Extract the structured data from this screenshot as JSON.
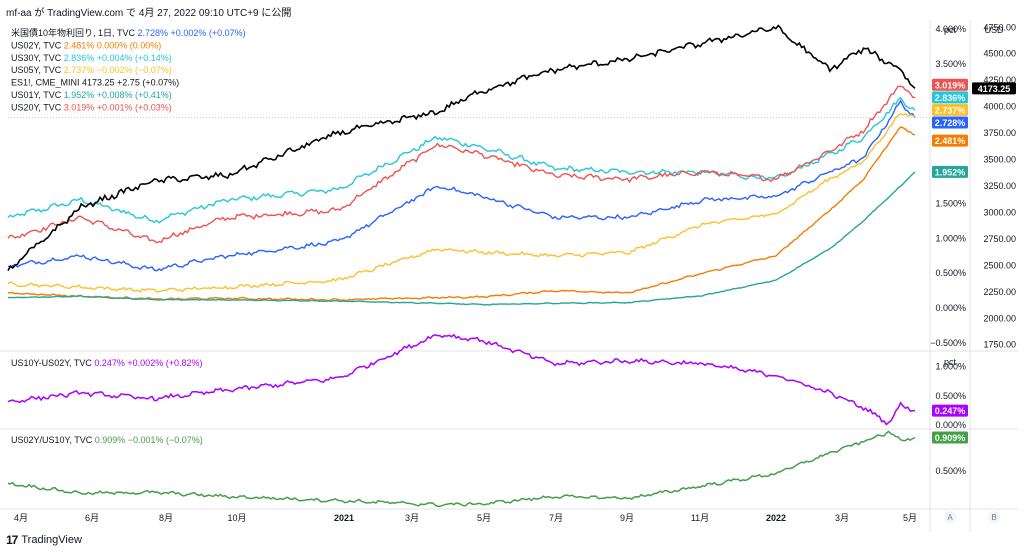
{
  "header": {
    "publisher_line": "mf-aa が TradingView.com で 4月 27, 2022 09:10 UTC+9 に公開"
  },
  "footer": {
    "logo_glyph": "17",
    "brand": "TradingView"
  },
  "bottom_buttons": {
    "auto": "A",
    "log": "B"
  },
  "chart_data": [
    {
      "type": "line",
      "panel": "main",
      "left_axis_unit": "pct",
      "right_axis_unit": "USD",
      "left_ticks": [
        "−0.500%",
        "0.000%",
        "0.500%",
        "1.000%",
        "1.500%",
        "3.500%",
        "4.000%"
      ],
      "right_ticks": [
        "1750.00",
        "2000.00",
        "2250.00",
        "2500.00",
        "2750.00",
        "3000.00",
        "3250.00",
        "3500.00",
        "3750.00",
        "4000.00",
        "4250.00",
        "4500.00",
        "4750.00"
      ],
      "ylim_left": [
        -0.6,
        4.1
      ],
      "ylim_right": [
        1700,
        4800
      ],
      "x_ticks": [
        "4月",
        "6月",
        "8月",
        "10月",
        "2021",
        "3月",
        "5月",
        "7月",
        "9月",
        "11月",
        "2022",
        "3月",
        "5月"
      ],
      "x_range": [
        "2020-04-01",
        "2022-04-27"
      ],
      "legend": [
        {
          "name": "米国債10年物利回り, 1日, TVC",
          "value": "2.728%",
          "change": "+0.002% (+0.07%)",
          "color": "#2962ff"
        },
        {
          "name": "US02Y, TVC",
          "value": "2.481%",
          "change": "0.000% (0.00%)",
          "color": "#f57c00"
        },
        {
          "name": "US30Y, TVC",
          "value": "2.836%",
          "change": "+0.004% (+0.14%)",
          "color": "#26c6da"
        },
        {
          "name": "US05Y, TVC",
          "value": "2.737%",
          "change": "−0.002% (−0.07%)",
          "color": "#fbc02d"
        },
        {
          "name": "ES1!, CME_MINI",
          "value": "4173.25",
          "change": "+2.75 (+0.07%)",
          "color": "#000000"
        },
        {
          "name": "US01Y, TVC",
          "value": "1.952%",
          "change": "+0.008% (+0.41%)",
          "color": "#26a69a"
        },
        {
          "name": "US20Y, TVC",
          "value": "3.019%",
          "change": "+0.001% (+0.03%)",
          "color": "#ef5350"
        }
      ],
      "series": [
        {
          "name": "US30Y",
          "axis": "left",
          "color": "#26c6da",
          "x": [
            "2020-04-01",
            "2020-06-01",
            "2020-08-01",
            "2020-10-01",
            "2021-01-01",
            "2021-03-25",
            "2021-05-01",
            "2021-07-01",
            "2021-09-01",
            "2021-11-01",
            "2022-01-01",
            "2022-02-15",
            "2022-03-15",
            "2022-04-15",
            "2022-04-27"
          ],
          "values": [
            1.3,
            1.55,
            1.25,
            1.55,
            1.7,
            2.45,
            2.3,
            2.0,
            1.95,
            1.95,
            1.85,
            2.2,
            2.45,
            3.0,
            2.836
          ]
        },
        {
          "name": "US20Y",
          "axis": "left",
          "color": "#ef5350",
          "x": [
            "2020-04-01",
            "2020-06-01",
            "2020-08-01",
            "2020-10-01",
            "2021-01-01",
            "2021-03-25",
            "2021-05-01",
            "2021-07-01",
            "2021-09-01",
            "2021-11-01",
            "2022-01-01",
            "2022-02-15",
            "2022-03-15",
            "2022-04-15",
            "2022-04-27"
          ],
          "values": [
            1.0,
            1.3,
            0.95,
            1.3,
            1.4,
            2.35,
            2.2,
            1.9,
            1.85,
            1.95,
            1.85,
            2.25,
            2.55,
            3.2,
            3.019
          ]
        },
        {
          "name": "US10Y",
          "axis": "left",
          "color": "#2962ff",
          "x": [
            "2020-04-01",
            "2020-06-01",
            "2020-08-01",
            "2020-10-01",
            "2021-01-01",
            "2021-03-25",
            "2021-05-01",
            "2021-07-01",
            "2021-09-01",
            "2021-11-01",
            "2022-01-01",
            "2022-02-15",
            "2022-03-15",
            "2022-04-15",
            "2022-04-27"
          ],
          "values": [
            0.6,
            0.75,
            0.55,
            0.75,
            0.95,
            1.75,
            1.6,
            1.3,
            1.3,
            1.55,
            1.6,
            1.95,
            2.15,
            2.95,
            2.728
          ]
        },
        {
          "name": "US05Y",
          "axis": "left",
          "color": "#fbc02d",
          "x": [
            "2020-04-01",
            "2020-06-01",
            "2020-08-01",
            "2020-10-01",
            "2021-01-01",
            "2021-03-25",
            "2021-05-01",
            "2021-07-01",
            "2021-09-01",
            "2021-11-01",
            "2022-01-01",
            "2022-02-15",
            "2022-03-15",
            "2022-04-15",
            "2022-04-27"
          ],
          "values": [
            0.35,
            0.3,
            0.25,
            0.3,
            0.4,
            0.85,
            0.8,
            0.75,
            0.8,
            1.2,
            1.35,
            1.85,
            2.1,
            2.8,
            2.737
          ]
        },
        {
          "name": "US02Y",
          "axis": "left",
          "color": "#f57c00",
          "x": [
            "2020-04-01",
            "2020-06-01",
            "2020-08-01",
            "2020-10-01",
            "2021-01-01",
            "2021-03-25",
            "2021-05-01",
            "2021-07-01",
            "2021-09-01",
            "2021-11-01",
            "2022-01-01",
            "2022-02-15",
            "2022-03-15",
            "2022-04-15",
            "2022-04-27"
          ],
          "values": [
            0.22,
            0.17,
            0.13,
            0.14,
            0.12,
            0.15,
            0.16,
            0.25,
            0.22,
            0.5,
            0.75,
            1.4,
            1.85,
            2.6,
            2.481
          ]
        },
        {
          "name": "US01Y",
          "axis": "left",
          "color": "#26a69a",
          "x": [
            "2020-04-01",
            "2020-06-01",
            "2020-08-01",
            "2020-10-01",
            "2021-01-01",
            "2021-03-25",
            "2021-05-01",
            "2021-07-01",
            "2021-09-01",
            "2021-11-01",
            "2022-01-01",
            "2022-02-15",
            "2022-03-15",
            "2022-04-15",
            "2022-04-27"
          ],
          "values": [
            0.15,
            0.17,
            0.12,
            0.12,
            0.1,
            0.07,
            0.05,
            0.07,
            0.08,
            0.18,
            0.4,
            0.85,
            1.25,
            1.75,
            1.952
          ]
        },
        {
          "name": "ES1!",
          "axis": "right",
          "color": "#000000",
          "x": [
            "2020-04-01",
            "2020-06-01",
            "2020-08-01",
            "2020-10-01",
            "2021-01-01",
            "2021-03-25",
            "2021-05-01",
            "2021-07-01",
            "2021-09-01",
            "2021-11-01",
            "2022-01-01",
            "2022-02-15",
            "2022-03-15",
            "2022-04-15",
            "2022-04-27"
          ],
          "values": [
            2450,
            3050,
            3300,
            3350,
            3750,
            3950,
            4150,
            4350,
            4450,
            4600,
            4750,
            4350,
            4550,
            4350,
            4173.25
          ]
        }
      ],
      "last_value_tags": [
        "3.019%",
        "2.836%",
        "4173.25",
        "2.737%",
        "2.728%",
        "2.481%",
        "1.952%"
      ],
      "crosshair_y_pct": 2.728
    },
    {
      "type": "line",
      "panel": "spread",
      "legend_text": "US10Y-US02Y, TVC",
      "value": "0.247%",
      "change": "+0.002% (+0.82%)",
      "color": "#aa00ff",
      "unit": "pct",
      "ticks": [
        "0.000%",
        "0.500%",
        "1.000%"
      ],
      "ylim": [
        -0.05,
        1.25
      ],
      "x": [
        "2020-04-01",
        "2020-06-01",
        "2020-08-01",
        "2020-10-01",
        "2021-01-01",
        "2021-03-25",
        "2021-05-01",
        "2021-07-01",
        "2021-09-01",
        "2021-11-01",
        "2022-01-01",
        "2022-02-15",
        "2022-03-15",
        "2022-04-05",
        "2022-04-15",
        "2022-04-27"
      ],
      "values": [
        0.4,
        0.55,
        0.45,
        0.6,
        0.8,
        1.55,
        1.45,
        1.05,
        1.1,
        1.05,
        0.85,
        0.55,
        0.3,
        0.03,
        0.35,
        0.247
      ]
    },
    {
      "type": "line",
      "panel": "ratio",
      "legend_text": "US02Y/US10Y, TVC",
      "value": "0.909%",
      "change": "−0.001% (−0.07%)",
      "color": "#43a047",
      "unit": "pct",
      "ticks": [
        "0.500%"
      ],
      "ylim": [
        0.05,
        1.0
      ],
      "x": [
        "2020-04-01",
        "2020-06-01",
        "2020-08-01",
        "2020-10-01",
        "2021-01-01",
        "2021-03-25",
        "2021-05-01",
        "2021-07-01",
        "2021-09-01",
        "2021-11-01",
        "2022-01-01",
        "2022-02-15",
        "2022-03-15",
        "2022-04-05",
        "2022-04-15",
        "2022-04-27"
      ],
      "values": [
        0.35,
        0.23,
        0.24,
        0.19,
        0.14,
        0.09,
        0.1,
        0.19,
        0.17,
        0.32,
        0.47,
        0.72,
        0.86,
        0.97,
        0.88,
        0.909
      ]
    }
  ]
}
